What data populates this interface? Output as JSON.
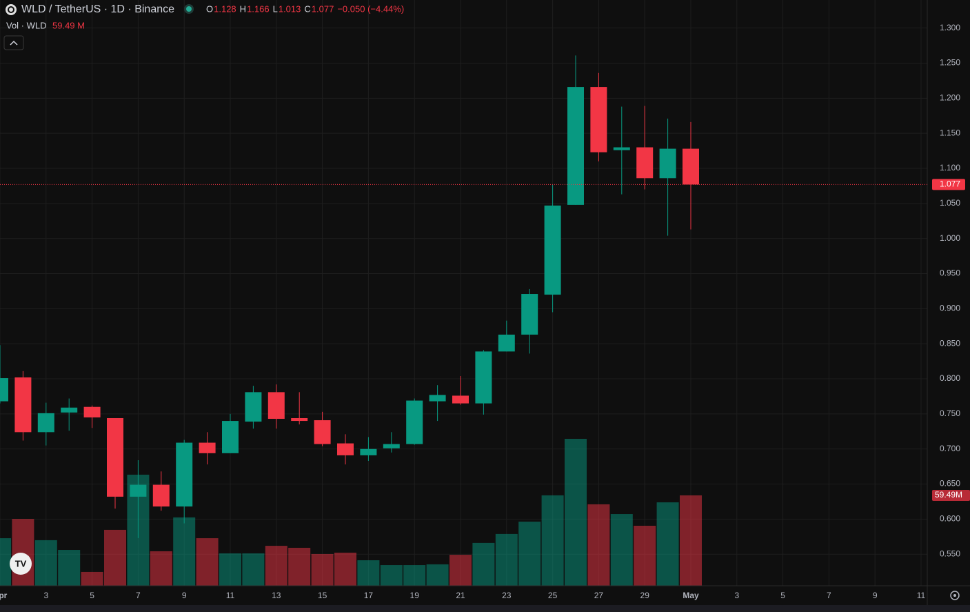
{
  "header": {
    "symbol": "WLD / TetherUS · 1D · Binance",
    "ohlc": [
      {
        "key": "O",
        "value": "1.128"
      },
      {
        "key": "H",
        "value": "1.166"
      },
      {
        "key": "L",
        "value": "1.013"
      },
      {
        "key": "C",
        "value": "1.077"
      }
    ],
    "change": "−0.050 (−4.44%)"
  },
  "chart_data": {
    "type": "candlestick",
    "categories": [
      "Apr",
      null,
      "3",
      null,
      "5",
      null,
      "7",
      null,
      "9",
      null,
      "11",
      null,
      "13",
      null,
      "15",
      null,
      "17",
      null,
      "19",
      null,
      "21",
      null,
      "23",
      null,
      "25",
      null,
      "27",
      null,
      "29",
      null,
      "May"
    ],
    "future_categories": [
      "3",
      "5",
      "7",
      "9",
      "11"
    ],
    "open": [
      0.768,
      0.802,
      0.724,
      0.752,
      0.76,
      0.744,
      0.632,
      0.649,
      0.618,
      0.709,
      0.694,
      0.739,
      0.781,
      0.744,
      0.741,
      0.708,
      0.691,
      0.701,
      0.707,
      0.768,
      0.776,
      0.765,
      0.839,
      0.863,
      0.92,
      1.048,
      1.216,
      1.126,
      1.13,
      1.086,
      1.128
    ],
    "high": [
      0.848,
      0.811,
      0.766,
      0.772,
      0.762,
      0.744,
      0.684,
      0.668,
      0.713,
      0.724,
      0.75,
      0.79,
      0.792,
      0.781,
      0.753,
      0.721,
      0.717,
      0.724,
      0.772,
      0.791,
      0.804,
      0.841,
      0.883,
      0.928,
      1.077,
      1.261,
      1.236,
      1.188,
      1.189,
      1.171,
      1.166
    ],
    "low": [
      0.765,
      0.712,
      0.705,
      0.726,
      0.73,
      0.615,
      0.573,
      0.612,
      0.594,
      0.678,
      0.694,
      0.729,
      0.729,
      0.735,
      0.704,
      0.678,
      0.683,
      0.695,
      0.706,
      0.74,
      0.763,
      0.749,
      0.839,
      0.836,
      0.895,
      1.048,
      1.11,
      1.063,
      1.07,
      1.004,
      1.013
    ],
    "close": [
      0.801,
      0.724,
      0.751,
      0.759,
      0.745,
      0.632,
      0.649,
      0.618,
      0.709,
      0.694,
      0.74,
      0.781,
      0.743,
      0.74,
      0.707,
      0.691,
      0.7,
      0.707,
      0.769,
      0.777,
      0.765,
      0.839,
      0.863,
      0.921,
      1.047,
      1.216,
      1.123,
      1.13,
      1.086,
      1.128,
      1.077
    ],
    "volume": {
      "name": "Vol · WLD",
      "values": [
        31.3,
        44.0,
        30.0,
        23.6,
        9.1,
        36.8,
        73.1,
        22.7,
        45.0,
        31.3,
        21.3,
        21.3,
        26.3,
        25.0,
        20.9,
        21.8,
        16.8,
        13.6,
        13.6,
        14.1,
        20.4,
        28.2,
        34.1,
        42.2,
        59.5,
        96.7,
        53.6,
        47.2,
        39.5,
        54.9,
        59.49
      ],
      "value_label": "59.49 M",
      "axis_label": "59.49M"
    },
    "last_price": {
      "value": 1.077,
      "label": "1.077"
    },
    "ylim": [
      0.505,
      1.34
    ],
    "yticks": [
      {
        "value": 0.55,
        "label": "0.550"
      },
      {
        "value": 0.6,
        "label": "0.600"
      },
      {
        "value": 0.65,
        "label": "0.650"
      },
      {
        "value": 0.7,
        "label": "0.700"
      },
      {
        "value": 0.75,
        "label": "0.750"
      },
      {
        "value": 0.8,
        "label": "0.800"
      },
      {
        "value": 0.85,
        "label": "0.850"
      },
      {
        "value": 0.9,
        "label": "0.900"
      },
      {
        "value": 0.95,
        "label": "0.950"
      },
      {
        "value": 1.0,
        "label": "1.000"
      },
      {
        "value": 1.05,
        "label": "1.050"
      },
      {
        "value": 1.1,
        "label": "1.100"
      },
      {
        "value": 1.15,
        "label": "1.150"
      },
      {
        "value": 1.2,
        "label": "1.200"
      },
      {
        "value": 1.25,
        "label": "1.250"
      },
      {
        "value": 1.3,
        "label": "1.300"
      }
    ],
    "up_color": "#089981",
    "down_color": "#f23645",
    "grid": true
  }
}
